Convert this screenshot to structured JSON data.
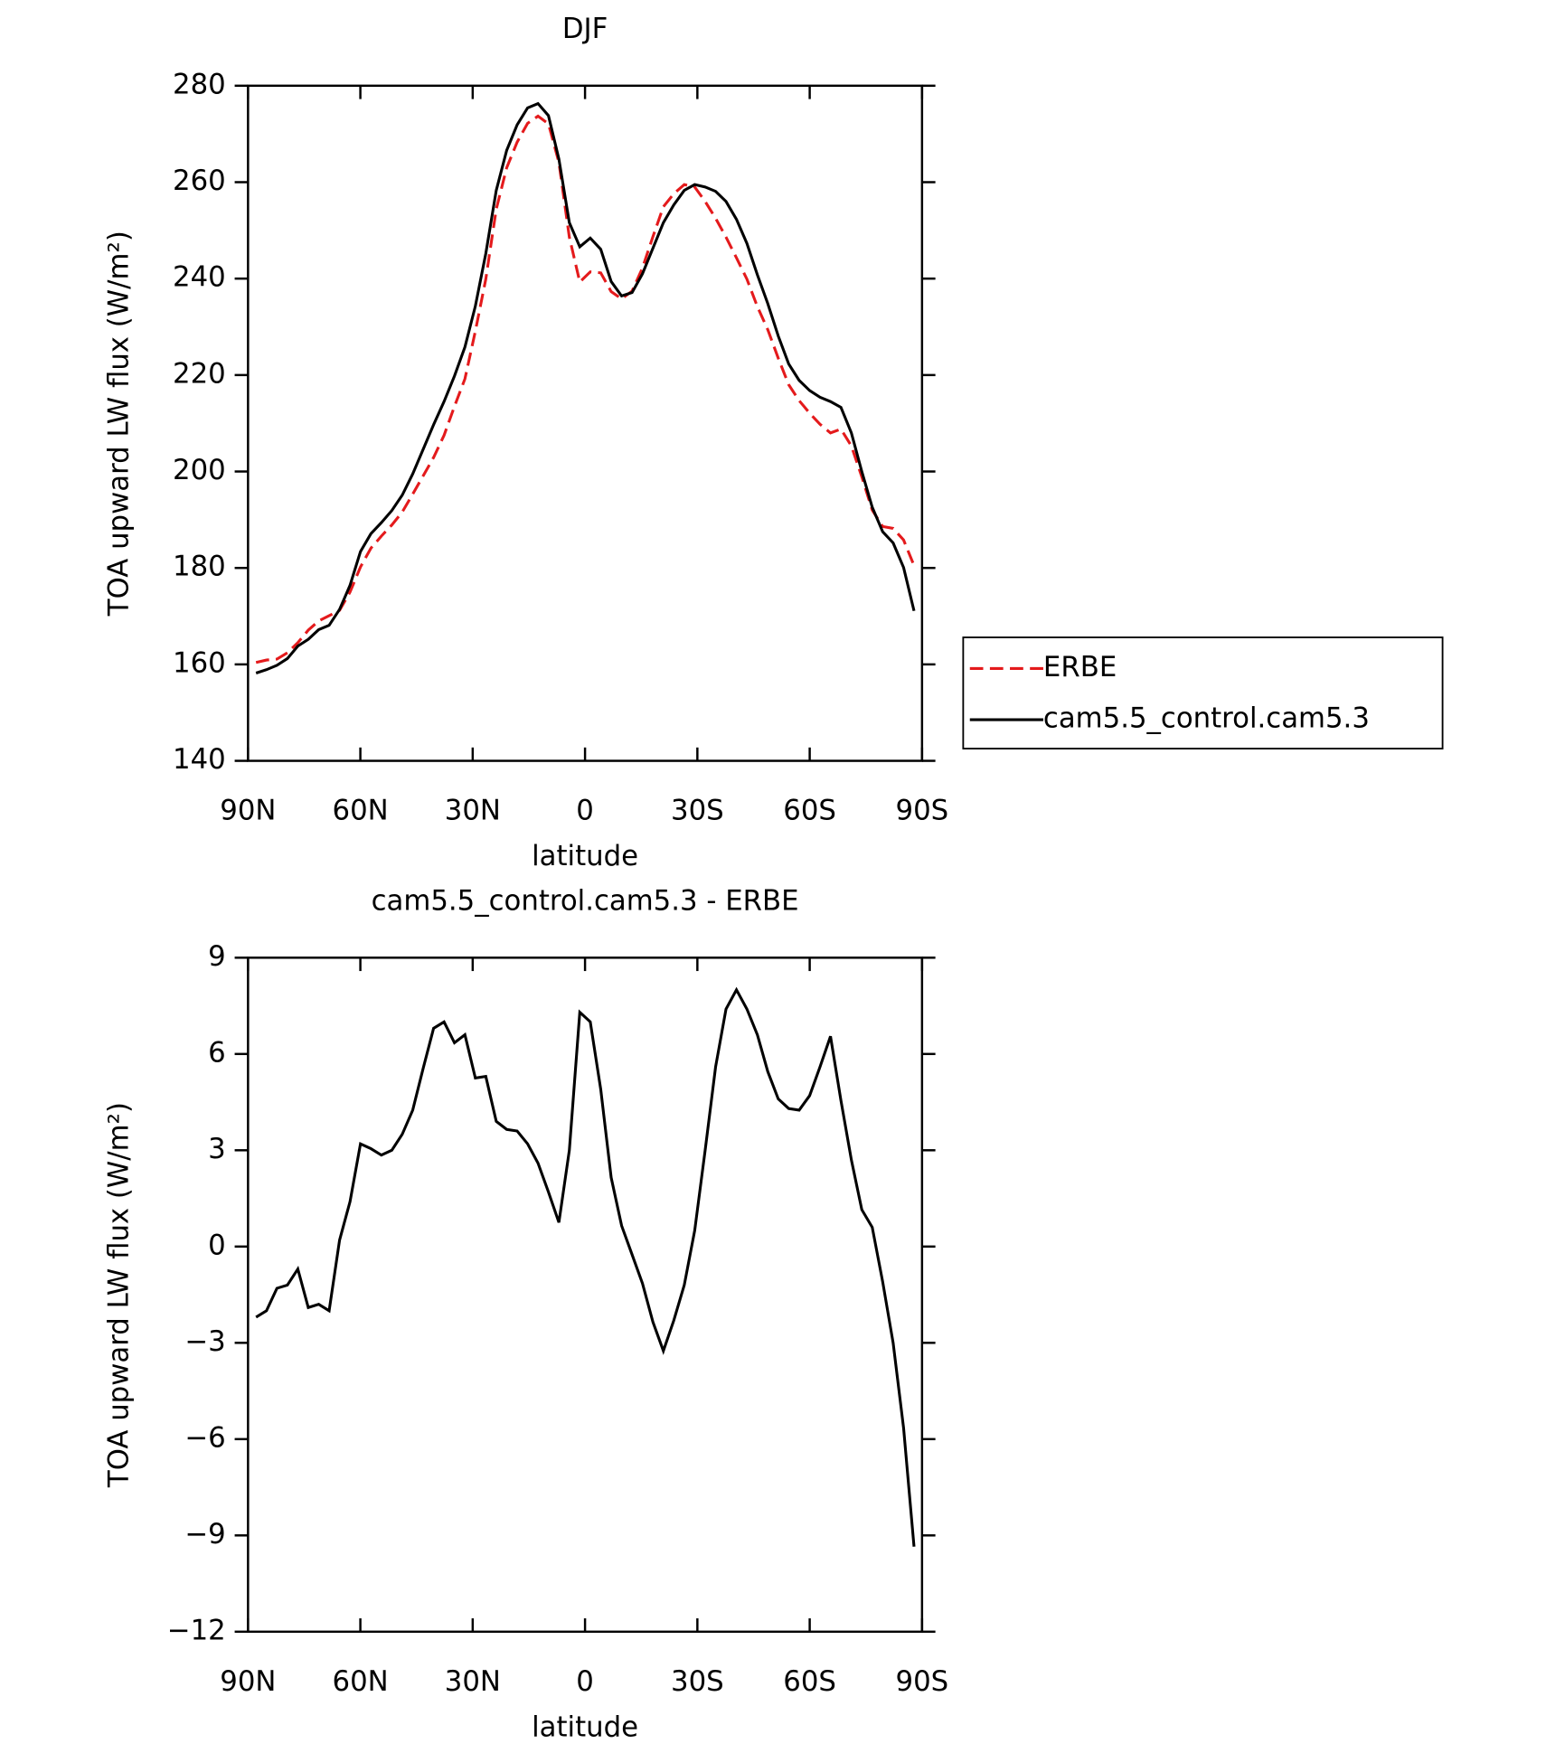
{
  "chart_data": [
    {
      "type": "line",
      "title": "DJF",
      "xlabel": "latitude",
      "ylabel": "TOA upward LW flux (W/m²)",
      "x": [
        87.86,
        85.07,
        82.28,
        79.49,
        76.7,
        73.91,
        71.13,
        68.34,
        65.55,
        62.76,
        59.97,
        57.18,
        54.39,
        51.6,
        48.81,
        46.02,
        43.23,
        40.44,
        37.65,
        34.87,
        32.08,
        29.29,
        26.5,
        23.71,
        20.92,
        18.13,
        15.34,
        12.56,
        9.77,
        6.98,
        4.19,
        1.4,
        -1.4,
        -4.19,
        -6.98,
        -9.77,
        -12.56,
        -15.34,
        -18.13,
        -20.92,
        -23.71,
        -26.5,
        -29.29,
        -32.08,
        -34.87,
        -37.65,
        -40.44,
        -43.23,
        -46.02,
        -48.81,
        -51.6,
        -54.39,
        -57.18,
        -59.97,
        -62.76,
        -65.55,
        -68.34,
        -71.13,
        -73.91,
        -76.7,
        -79.49,
        -82.28,
        -85.07,
        -87.86
      ],
      "series": [
        {
          "name": "ERBE",
          "color": "#e41a1c",
          "linestyle": "dashed",
          "values": [
            160.4,
            160.9,
            161.1,
            162.4,
            164.5,
            167.1,
            169.0,
            170.1,
            171.2,
            175.0,
            180.2,
            184.1,
            186.6,
            188.9,
            191.6,
            195.3,
            199.1,
            202.9,
            207.5,
            213.5,
            219.2,
            229.1,
            239.9,
            254.4,
            263.0,
            268.3,
            272.2,
            273.7,
            272.1,
            264.1,
            248.6,
            239.3,
            241.4,
            241.2,
            237.3,
            235.8,
            237.4,
            242.2,
            248.7,
            254.9,
            257.6,
            259.5,
            259.0,
            256.0,
            252.5,
            248.6,
            244.3,
            239.9,
            234.2,
            229.4,
            223.5,
            218.0,
            214.7,
            212.1,
            209.8,
            208.0,
            208.8,
            205.3,
            198.9,
            192.0,
            188.6,
            188.2,
            185.8,
            180.5
          ]
        },
        {
          "name": "cam5.5_control.cam5.3",
          "color": "#000000",
          "linestyle": "solid",
          "values": [
            158.2,
            158.9,
            159.8,
            161.2,
            163.8,
            165.2,
            167.2,
            168.1,
            171.4,
            176.4,
            183.4,
            187.1,
            189.4,
            191.9,
            195.1,
            199.5,
            204.6,
            209.7,
            214.5,
            219.8,
            225.8,
            234.3,
            245.2,
            258.3,
            266.6,
            271.9,
            275.4,
            276.3,
            273.8,
            264.8,
            251.6,
            246.6,
            248.4,
            246.1,
            239.4,
            236.4,
            237.1,
            241.0,
            246.3,
            251.6,
            255.3,
            258.3,
            259.5,
            259.0,
            258.1,
            256.0,
            252.3,
            247.3,
            240.8,
            234.8,
            228.1,
            222.3,
            218.9,
            216.8,
            215.4,
            214.5,
            213.3,
            208.0,
            200.0,
            192.6,
            187.5,
            185.2,
            180.1,
            171.1
          ]
        }
      ],
      "xlim": [
        90,
        -90
      ],
      "xticks": [
        {
          "value": 90,
          "label": "90N"
        },
        {
          "value": 60,
          "label": "60N"
        },
        {
          "value": 30,
          "label": "30N"
        },
        0,
        {
          "value": -30,
          "label": "30S"
        },
        {
          "value": -60,
          "label": "60S"
        },
        {
          "value": -90,
          "label": "90S"
        }
      ],
      "ylim": [
        140,
        280
      ],
      "yticks": [
        140,
        160,
        180,
        200,
        220,
        240,
        260,
        280
      ],
      "legend": "right"
    },
    {
      "type": "line",
      "title": "cam5.5_control.cam5.3 - ERBE",
      "xlabel": "latitude",
      "ylabel": "TOA upward LW flux (W/m²)",
      "x": [
        87.86,
        85.07,
        82.28,
        79.49,
        76.7,
        73.91,
        71.13,
        68.34,
        65.55,
        62.76,
        59.97,
        57.18,
        54.39,
        51.6,
        48.81,
        46.02,
        43.23,
        40.44,
        37.65,
        34.87,
        32.08,
        29.29,
        26.5,
        23.71,
        20.92,
        18.13,
        15.34,
        12.56,
        9.77,
        6.98,
        4.19,
        1.4,
        -1.4,
        -4.19,
        -6.98,
        -9.77,
        -12.56,
        -15.34,
        -18.13,
        -20.92,
        -23.71,
        -26.5,
        -29.29,
        -32.08,
        -34.87,
        -37.65,
        -40.44,
        -43.23,
        -46.02,
        -48.81,
        -51.6,
        -54.39,
        -57.18,
        -59.97,
        -62.76,
        -65.55,
        -68.34,
        -71.13,
        -73.91,
        -76.7,
        -79.49,
        -82.28,
        -85.07,
        -87.86
      ],
      "series": [
        {
          "color": "#000000",
          "linestyle": "solid",
          "values": [
            -2.2,
            -2.0,
            -1.3,
            -1.2,
            -0.7,
            -1.9,
            -1.8,
            -2.0,
            0.2,
            1.4,
            3.2,
            3.05,
            2.85,
            3.0,
            3.5,
            4.25,
            5.55,
            6.8,
            7.0,
            6.35,
            6.6,
            5.25,
            5.3,
            3.9,
            3.65,
            3.6,
            3.2,
            2.6,
            1.7,
            0.75,
            3.0,
            7.3,
            7.0,
            4.9,
            2.15,
            0.65,
            -0.25,
            -1.15,
            -2.35,
            -3.25,
            -2.3,
            -1.2,
            0.5,
            3.0,
            5.6,
            7.4,
            8.0,
            7.4,
            6.6,
            5.45,
            4.6,
            4.3,
            4.25,
            4.7,
            5.6,
            6.55,
            4.55,
            2.7,
            1.15,
            0.6,
            -1.1,
            -3.0,
            -5.65,
            -9.35
          ]
        }
      ],
      "xlim": [
        90,
        -90
      ],
      "xticks": [
        {
          "value": 90,
          "label": "90N"
        },
        {
          "value": 60,
          "label": "60N"
        },
        {
          "value": 30,
          "label": "30N"
        },
        0,
        {
          "value": -30,
          "label": "30S"
        },
        {
          "value": -60,
          "label": "60S"
        },
        {
          "value": -90,
          "label": "90S"
        }
      ],
      "ylim": [
        -12,
        9
      ],
      "yticks": [
        {
          "value": -12,
          "label": "−12"
        },
        {
          "value": -9,
          "label": "−9"
        },
        {
          "value": -6,
          "label": "−6"
        },
        {
          "value": -3,
          "label": "−3"
        },
        0,
        3,
        6,
        9
      ]
    }
  ]
}
